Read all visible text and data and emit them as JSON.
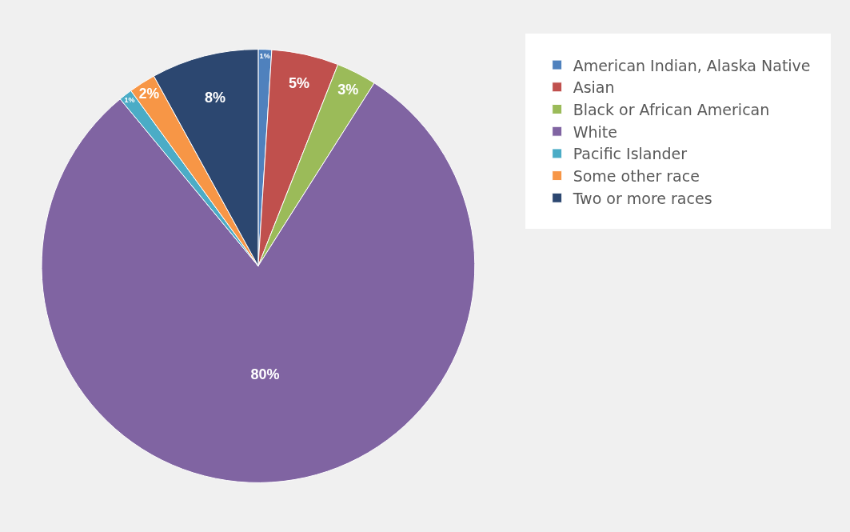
{
  "chart_data": {
    "type": "pie",
    "categories": [
      "American Indian, Alaska Native",
      "Asian",
      "Black or African American",
      "White",
      "Pacific Islander",
      "Some other race",
      "Two or more races"
    ],
    "values": [
      1,
      5,
      3,
      80,
      1,
      2,
      8
    ],
    "colors": [
      "#4f81bd",
      "#c0504d",
      "#9bbb59",
      "#8064a2",
      "#4bacc6",
      "#f79646",
      "#2c4770"
    ],
    "value_labels": [
      "1%",
      "5%",
      "3%",
      "80%",
      "1%",
      "2%",
      "8%"
    ],
    "legend": "right"
  }
}
